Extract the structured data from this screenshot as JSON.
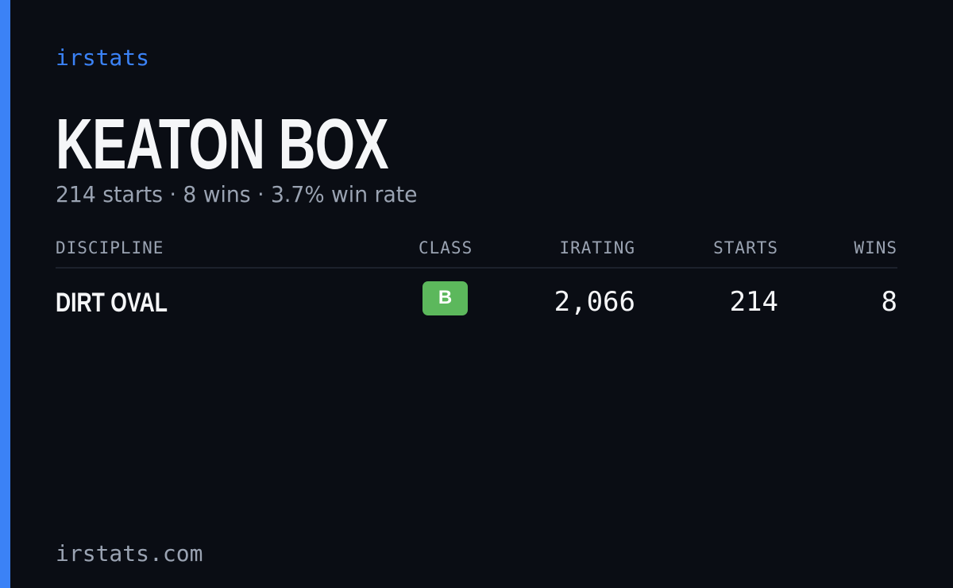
{
  "brand": "irstats",
  "driver": {
    "name": "KEATON BOX",
    "summary": "214 starts · 8 wins · 3.7% win rate"
  },
  "table": {
    "headers": [
      "DISCIPLINE",
      "CLASS",
      "IRATING",
      "STARTS",
      "WINS"
    ],
    "rows": [
      [
        "DIRT OVAL",
        "B",
        "2,066",
        "214",
        "8"
      ]
    ]
  },
  "footer": "irstats.com"
}
